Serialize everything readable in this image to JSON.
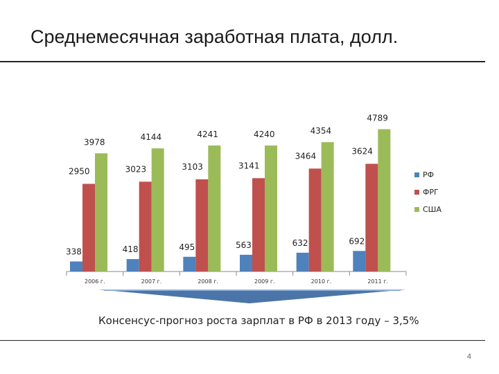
{
  "slide": {
    "title": "Среднемесячная заработная плата, долл.",
    "caption": "Консенсус-прогноз роста зарплат в РФ в 2013 году – 3,5%",
    "page_number": "4"
  },
  "colors": {
    "rf": "#4F81BD",
    "frg": "#C0504D",
    "usa": "#9BBB59",
    "arrow": "#4B75A8"
  },
  "chart_data": {
    "type": "bar",
    "title": "",
    "xlabel": "",
    "ylabel": "",
    "categories": [
      "2006 г.",
      "2007 г.",
      "2008 г.",
      "2009 г.",
      "2010 г.",
      "2011 г."
    ],
    "series": [
      {
        "name": "РФ",
        "color": "#4F81BD",
        "values": [
          338,
          418,
          495,
          563,
          632,
          692
        ]
      },
      {
        "name": "ФРГ",
        "color": "#C0504D",
        "values": [
          2950,
          3023,
          3103,
          3141,
          3464,
          3624
        ]
      },
      {
        "name": "США",
        "color": "#9BBB59",
        "values": [
          3978,
          4144,
          4241,
          4240,
          4354,
          4789
        ]
      }
    ],
    "ylim": [
      0,
      5000
    ],
    "grid": false,
    "legend": "right"
  }
}
